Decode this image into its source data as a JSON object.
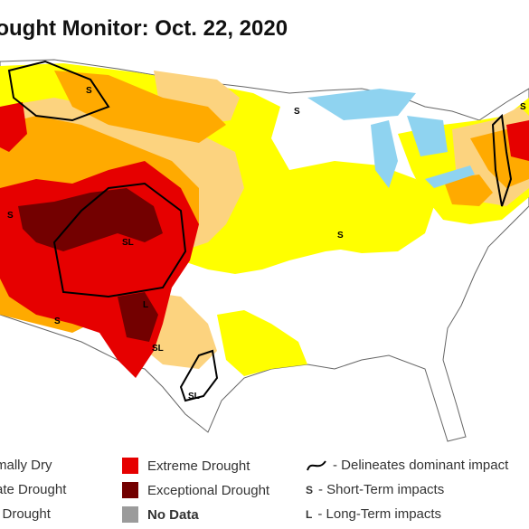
{
  "title": "rought Monitor: Oct. 22, 2020",
  "legend": {
    "abnormally_dry": {
      "label": "rmally Dry",
      "color": "#ffff00"
    },
    "moderate": {
      "label": "rate Drought",
      "color": "#fcd37f"
    },
    "severe": {
      "label": "e Drought",
      "color": "#ffaa00"
    },
    "extreme": {
      "label": "Extreme Drought",
      "color": "#e60000"
    },
    "exceptional": {
      "label": "Exceptional Drought",
      "color": "#730000"
    },
    "nodata": {
      "label": "No Data",
      "color": "#9b9b9b"
    },
    "delineates": {
      "label": "- Delineates dominant impact"
    },
    "short_term": {
      "symbol": "S",
      "label": "- Short-Term impacts"
    },
    "long_term": {
      "symbol": "L",
      "label": "- Long-Term impacts"
    }
  },
  "map_labels": {
    "s1": "S",
    "s2": "S",
    "s3": "S",
    "s4": "S",
    "s5": "S",
    "s6": "S",
    "sl1": "SL",
    "sl2": "SL",
    "sl3": "SL",
    "l1": "L"
  },
  "colors": {
    "water": "#8fd3f0",
    "land": "#ffffff",
    "borders": "#9a9a9a"
  }
}
